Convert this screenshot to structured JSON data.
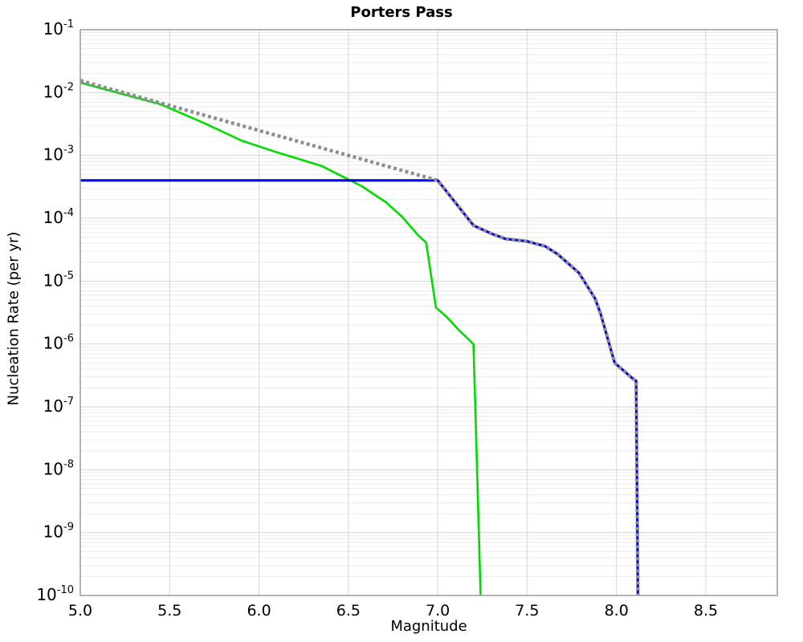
{
  "chart_data": {
    "type": "line",
    "title": "Porters Pass",
    "xlabel": "Magnitude",
    "ylabel": "Nucleation Rate (per yr)",
    "xlim": [
      5.0,
      8.9
    ],
    "ylim": [
      1e-10,
      0.1
    ],
    "y_scale": "log",
    "x_ticks": [
      5.0,
      5.5,
      6.0,
      6.5,
      7.0,
      7.5,
      8.0,
      8.5
    ],
    "x_tick_labels": [
      "5.0",
      "5.5",
      "6.0",
      "6.5",
      "7.0",
      "7.5",
      "8.0",
      "8.5"
    ],
    "y_tick_exponents": [
      -1,
      -2,
      -3,
      -4,
      -5,
      -6,
      -7,
      -8,
      -9,
      -10
    ],
    "grid": {
      "on": true,
      "major_color": "#d6d6d6",
      "minor_color": "#ececec",
      "border_color": "#9c9c9c",
      "background": "#ffffff"
    },
    "legend": "none",
    "series": [
      {
        "name": "green-solid-line",
        "color": "#00dc00",
        "style": "solid",
        "width": 2.6,
        "points": [
          [
            5.0,
            0.0144
          ],
          [
            5.2,
            0.0101
          ],
          [
            5.45,
            0.0065
          ],
          [
            5.7,
            0.0032
          ],
          [
            5.9,
            0.00173
          ],
          [
            6.1,
            0.00112
          ],
          [
            6.35,
            0.00068
          ],
          [
            6.575,
            0.000324
          ],
          [
            6.71,
            0.00018
          ],
          [
            6.8,
            0.000106
          ],
          [
            6.89,
            5.4e-05
          ],
          [
            6.935,
            4.1e-05
          ],
          [
            6.99,
            3.8e-06
          ],
          [
            7.05,
            2.7e-06
          ],
          [
            7.115,
            1.7e-06
          ],
          [
            7.2,
            9.9e-07
          ],
          [
            7.21,
            1e-07
          ],
          [
            7.22,
            1e-08
          ],
          [
            7.23,
            1e-09
          ],
          [
            7.24,
            1e-10
          ]
        ]
      },
      {
        "name": "blue-solid-line",
        "color": "#0000e8",
        "style": "solid",
        "width": 3.2,
        "points": [
          [
            5.0,
            0.0004
          ],
          [
            7.0,
            0.0004
          ],
          [
            7.2,
            7.7e-05
          ],
          [
            7.3,
            5.7e-05
          ],
          [
            7.38,
            4.7e-05
          ],
          [
            7.5,
            4.3e-05
          ],
          [
            7.6,
            3.6e-05
          ],
          [
            7.67,
            2.7e-05
          ],
          [
            7.79,
            1.35e-05
          ],
          [
            7.88,
            5.3e-06
          ],
          [
            7.91,
            3.1e-06
          ],
          [
            7.99,
            5e-07
          ],
          [
            8.08,
            3e-07
          ],
          [
            8.1,
            2.7e-07
          ],
          [
            8.11,
            2.6e-07
          ],
          [
            8.12,
            1e-10
          ]
        ]
      },
      {
        "name": "gray-dotted-line",
        "color": "#8f8f8f",
        "style": "dotted",
        "width": 4.4,
        "points": [
          [
            5.0,
            0.0155
          ],
          [
            7.0,
            0.0004
          ],
          [
            7.2,
            7.7e-05
          ],
          [
            7.3,
            5.7e-05
          ],
          [
            7.38,
            4.7e-05
          ],
          [
            7.5,
            4.3e-05
          ],
          [
            7.6,
            3.6e-05
          ],
          [
            7.67,
            2.7e-05
          ],
          [
            7.79,
            1.35e-05
          ],
          [
            7.88,
            5.3e-06
          ],
          [
            7.91,
            3.1e-06
          ],
          [
            7.99,
            5e-07
          ],
          [
            8.08,
            3e-07
          ],
          [
            8.1,
            2.7e-07
          ],
          [
            8.11,
            2.6e-07
          ],
          [
            8.12,
            1e-10
          ]
        ]
      }
    ]
  }
}
